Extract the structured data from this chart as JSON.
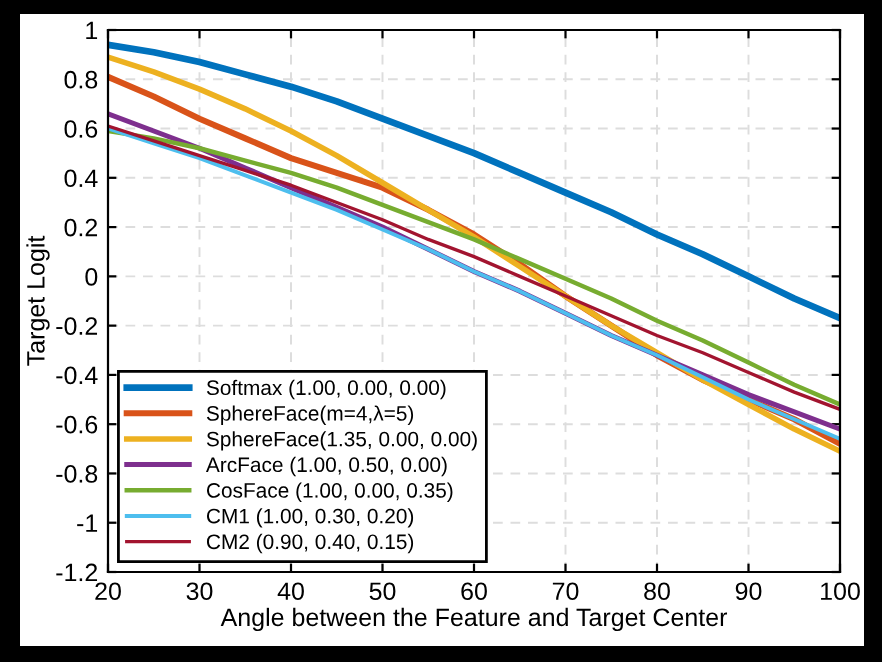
{
  "chart_data": {
    "type": "line",
    "xlabel": "Angle between the Feature and Target Center",
    "ylabel": "Target Logit",
    "x": [
      20,
      25,
      30,
      35,
      40,
      45,
      50,
      55,
      60,
      65,
      70,
      75,
      80,
      85,
      90,
      95,
      100
    ],
    "series": [
      {
        "name": "Softmax (1.00, 0.00, 0.00)",
        "color": "#0072bd",
        "values": [
          0.94,
          0.91,
          0.87,
          0.82,
          0.77,
          0.71,
          0.64,
          0.57,
          0.5,
          0.42,
          0.34,
          0.26,
          0.17,
          0.09,
          0,
          -0.09,
          -0.17
        ]
      },
      {
        "name": "SphereFace(m=4,λ=5)",
        "color": "#d95319",
        "values": [
          0.81,
          0.73,
          0.64,
          0.56,
          0.48,
          0.42,
          0.36,
          0.27,
          0.17,
          0.05,
          -0.08,
          -0.2,
          -0.32,
          -0.42,
          -0.5,
          -0.58,
          -0.68
        ]
      },
      {
        "name": "SphereFace(1.35, 0.00, 0.00)",
        "color": "#edb120",
        "values": [
          0.89,
          0.83,
          0.76,
          0.68,
          0.59,
          0.49,
          0.38,
          0.27,
          0.16,
          0.04,
          -0.08,
          -0.2,
          -0.31,
          -0.42,
          -0.52,
          -0.62,
          -0.71
        ]
      },
      {
        "name": "ArcFace (1.00, 0.50, 0.00)",
        "color": "#7e2f8e",
        "values": [
          0.66,
          0.59,
          0.52,
          0.44,
          0.36,
          0.28,
          0.2,
          0.11,
          0.02,
          -0.06,
          -0.15,
          -0.24,
          -0.32,
          -0.4,
          -0.48,
          -0.55,
          -0.62
        ]
      },
      {
        "name": "CosFace (1.00, 0.00, 0.35)",
        "color": "#77ac30",
        "values": [
          0.59,
          0.56,
          0.52,
          0.47,
          0.42,
          0.36,
          0.29,
          0.22,
          0.15,
          0.07,
          -0.01,
          -0.09,
          -0.18,
          -0.26,
          -0.35,
          -0.44,
          -0.52
        ]
      },
      {
        "name": "CM1 (1.00, 0.30, 0.20)",
        "color": "#4dbeee",
        "values": [
          0.6,
          0.54,
          0.48,
          0.41,
          0.34,
          0.27,
          0.19,
          0.11,
          0.02,
          -0.06,
          -0.15,
          -0.24,
          -0.32,
          -0.41,
          -0.5,
          -0.58,
          -0.66
        ]
      },
      {
        "name": "CM2 (0.90, 0.40, 0.15)",
        "color": "#a2142f",
        "values": [
          0.61,
          0.55,
          0.49,
          0.43,
          0.37,
          0.3,
          0.23,
          0.15,
          0.08,
          0,
          -0.08,
          -0.16,
          -0.24,
          -0.31,
          -0.39,
          -0.47,
          -0.54
        ]
      }
    ],
    "xlim": [
      20,
      100
    ],
    "xticks": [
      20,
      30,
      40,
      50,
      60,
      70,
      80,
      90,
      100
    ],
    "ylim": [
      -1.2,
      1
    ],
    "yticks": [
      -1.2,
      -1,
      -0.8,
      -0.6,
      -0.4,
      -0.2,
      0,
      0.2,
      0.4,
      0.6,
      0.8,
      1
    ],
    "grid": true,
    "legend": "bottom left",
    "line_style": "solid",
    "marker": "none"
  }
}
